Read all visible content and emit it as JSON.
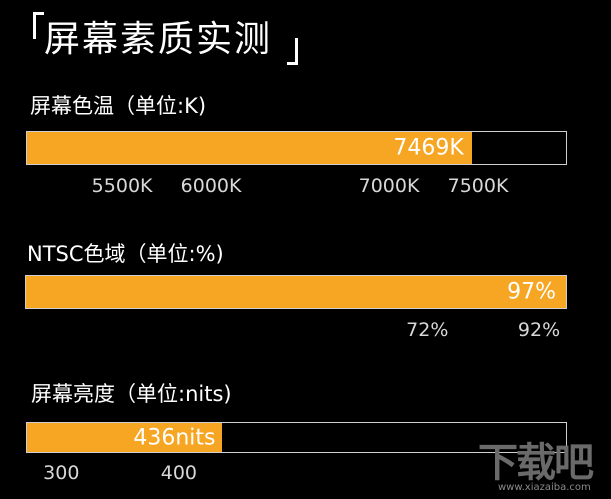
{
  "title": "屏幕素质实测",
  "chart_data": [
    {
      "type": "bar",
      "title": "屏幕色温（单位:K)",
      "value": 7469,
      "value_label": "7469K",
      "xlim": [
        4960,
        8000
      ],
      "ticks": [
        {
          "value": 5500,
          "label": "5500K"
        },
        {
          "value": 6000,
          "label": "6000K"
        },
        {
          "value": 7000,
          "label": "7000K"
        },
        {
          "value": 7500,
          "label": "7500K"
        }
      ],
      "fill_color": "#f6a623"
    },
    {
      "type": "bar",
      "title": "NTSC色域（单位:%)",
      "value": 97,
      "value_label": "97%",
      "xlim": [
        0,
        97
      ],
      "ticks": [
        {
          "value": 72,
          "label": "72%"
        },
        {
          "value": 92,
          "label": "92%"
        }
      ],
      "fill_color": "#f6a623"
    },
    {
      "type": "bar",
      "title": "屏幕亮度（单位:nits)",
      "value": 436,
      "value_label": "436nits",
      "xlim": [
        270,
        730
      ],
      "ticks": [
        {
          "value": 300,
          "label": "300"
        },
        {
          "value": 400,
          "label": "400"
        }
      ],
      "fill_color": "#f6a623"
    }
  ],
  "watermark": {
    "text": "下载吧",
    "url": "www.xiazaiba.com"
  }
}
